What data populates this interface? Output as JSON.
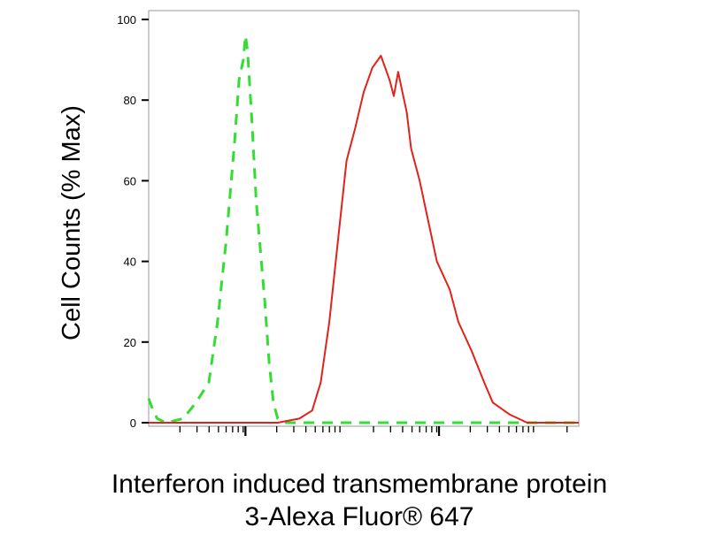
{
  "chart_data": {
    "type": "line",
    "title": "",
    "xlabel_line1": "Interferon induced transmembrane protein",
    "xlabel_line2": "3-Alexa Fluor® 647",
    "ylabel": "Cell Counts (% Max)",
    "x_scale": "log",
    "ylim": [
      0,
      100
    ],
    "y_ticks": [
      "0",
      "20",
      "40",
      "60",
      "80",
      "100"
    ],
    "x_tick_labels": [],
    "grid": false,
    "legend": "none",
    "series": [
      {
        "style": "dashed",
        "color": "#33dd33",
        "x": [
          0.0,
          0.01,
          0.02,
          0.04,
          0.08,
          0.11,
          0.14,
          0.16,
          0.18,
          0.2,
          0.21,
          0.22,
          0.225,
          0.23,
          0.24,
          0.25,
          0.27,
          0.28,
          0.29,
          0.3,
          0.32,
          0.34,
          0.36,
          0.4,
          0.45,
          0.5,
          0.55,
          0.6,
          0.7,
          0.8,
          0.9,
          1.0
        ],
        "y": [
          6,
          3,
          1,
          0,
          1,
          5,
          10,
          25,
          45,
          70,
          85,
          90,
          96,
          92,
          75,
          55,
          30,
          15,
          5,
          1,
          0,
          0,
          0,
          0,
          0,
          0,
          0,
          0,
          0,
          0,
          0,
          0
        ]
      },
      {
        "style": "solid",
        "color": "#e0231a",
        "x": [
          0.0,
          0.15,
          0.25,
          0.3,
          0.35,
          0.38,
          0.4,
          0.42,
          0.44,
          0.46,
          0.48,
          0.5,
          0.52,
          0.54,
          0.56,
          0.57,
          0.58,
          0.59,
          0.6,
          0.61,
          0.63,
          0.65,
          0.67,
          0.7,
          0.72,
          0.75,
          0.78,
          0.8,
          0.84,
          0.88,
          0.92,
          0.96,
          1.0
        ],
        "y": [
          0,
          0,
          0,
          0,
          1,
          3,
          10,
          25,
          45,
          65,
          73,
          82,
          88,
          91,
          85,
          81,
          87,
          82,
          77,
          68,
          60,
          50,
          40,
          33,
          25,
          18,
          10,
          5,
          2,
          0,
          0,
          0,
          0
        ]
      }
    ]
  }
}
